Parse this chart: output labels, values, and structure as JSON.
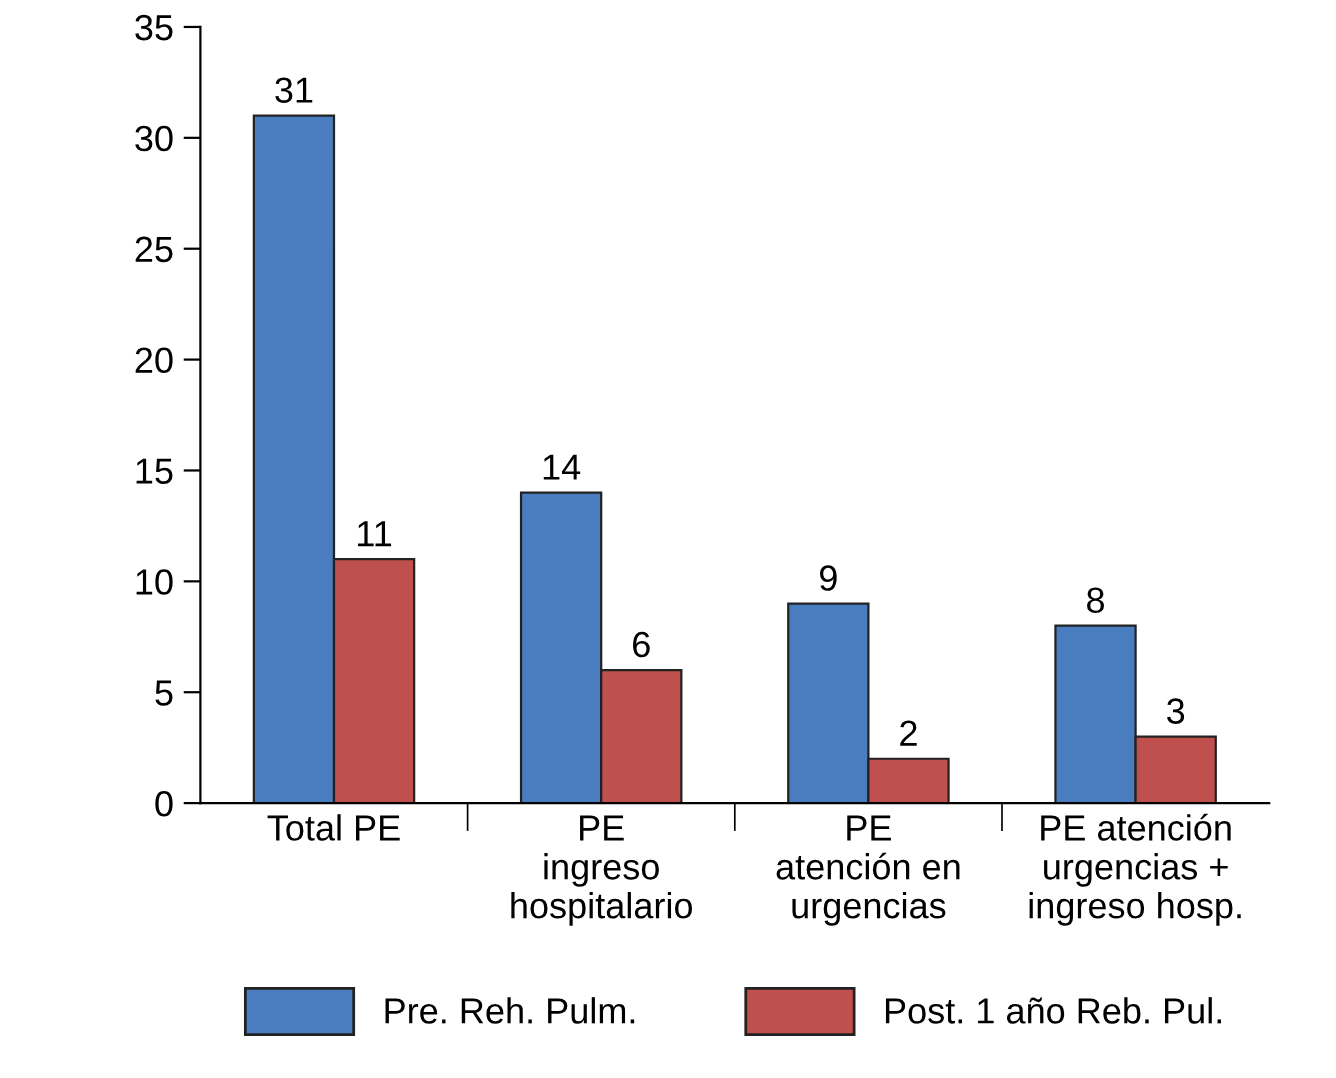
{
  "chart_data": {
    "type": "bar",
    "categories": [
      "Total PE",
      "PE\ningreso\nhospitalario",
      "PE\natención en\nurgencias",
      "PE atención\nurgencias +\ningreso hosp."
    ],
    "series": [
      {
        "name": "Pre. Reh. Pulm.",
        "color": "#4a7dc0",
        "values": [
          31,
          14,
          9,
          8
        ]
      },
      {
        "name": "Post. 1 año Reb. Pul.",
        "color": "#c0504d",
        "values": [
          11,
          6,
          2,
          3
        ]
      }
    ],
    "ylim": [
      0,
      35
    ],
    "yticks": [
      0,
      5,
      10,
      15,
      20,
      25,
      30,
      35
    ],
    "data_labels": true,
    "grid": false,
    "legend": "bottom"
  }
}
